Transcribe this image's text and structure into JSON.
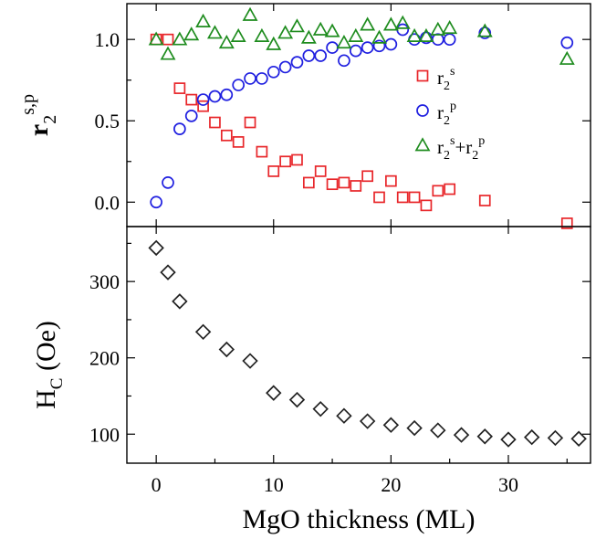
{
  "chart_data": [
    {
      "type": "scatter",
      "panel": "top",
      "ylabel": "r2s,p",
      "ylabel_parts": {
        "base": "r",
        "sub": "2",
        "sup": "s,p"
      },
      "xlim": [
        -2.5,
        37
      ],
      "ylim": [
        -0.15,
        1.22
      ],
      "yticks": [
        0.0,
        0.5,
        1.0
      ],
      "ytick_labels": [
        "0.0",
        "0.5",
        "1.0"
      ],
      "grid": false,
      "legend_position": "right",
      "series": [
        {
          "name": "r2s",
          "legend_parts": [
            {
              "t": "r"
            },
            {
              "t": "2",
              "k": "sub"
            },
            {
              "t": "s",
              "k": "sup"
            }
          ],
          "marker": "square",
          "color": "#e8262a",
          "points": [
            [
              0,
              1.0
            ],
            [
              1,
              1.0
            ],
            [
              2,
              0.7
            ],
            [
              3,
              0.63
            ],
            [
              4,
              0.59
            ],
            [
              5,
              0.49
            ],
            [
              6,
              0.41
            ],
            [
              7,
              0.37
            ],
            [
              8,
              0.49
            ],
            [
              9,
              0.31
            ],
            [
              10,
              0.19
            ],
            [
              11,
              0.25
            ],
            [
              12,
              0.26
            ],
            [
              13,
              0.12
            ],
            [
              14,
              0.19
            ],
            [
              15,
              0.11
            ],
            [
              16,
              0.12
            ],
            [
              17,
              0.1
            ],
            [
              18,
              0.16
            ],
            [
              19,
              0.03
            ],
            [
              20,
              0.13
            ],
            [
              21,
              0.03
            ],
            [
              22,
              0.03
            ],
            [
              23,
              -0.02
            ],
            [
              24,
              0.07
            ],
            [
              25,
              0.08
            ],
            [
              28,
              0.01
            ],
            [
              35,
              -0.13
            ]
          ]
        },
        {
          "name": "r2p",
          "legend_parts": [
            {
              "t": "r"
            },
            {
              "t": "2",
              "k": "sub"
            },
            {
              "t": "p",
              "k": "sup"
            }
          ],
          "marker": "circle",
          "color": "#2020e0",
          "points": [
            [
              0,
              0.0
            ],
            [
              1,
              0.12
            ],
            [
              2,
              0.45
            ],
            [
              3,
              0.53
            ],
            [
              4,
              0.63
            ],
            [
              5,
              0.65
            ],
            [
              6,
              0.66
            ],
            [
              7,
              0.72
            ],
            [
              8,
              0.76
            ],
            [
              9,
              0.76
            ],
            [
              10,
              0.8
            ],
            [
              11,
              0.83
            ],
            [
              12,
              0.86
            ],
            [
              13,
              0.9
            ],
            [
              14,
              0.9
            ],
            [
              15,
              0.95
            ],
            [
              16,
              0.87
            ],
            [
              17,
              0.93
            ],
            [
              18,
              0.95
            ],
            [
              19,
              0.96
            ],
            [
              20,
              0.97
            ],
            [
              21,
              1.06
            ],
            [
              22,
              1.0
            ],
            [
              23,
              1.01
            ],
            [
              24,
              1.0
            ],
            [
              25,
              1.0
            ],
            [
              28,
              1.04
            ],
            [
              35,
              0.98
            ]
          ]
        },
        {
          "name": "r2s+r2p",
          "legend_parts": [
            {
              "t": "r"
            },
            {
              "t": "2",
              "k": "sub"
            },
            {
              "t": "s",
              "k": "sup"
            },
            {
              "t": "+r"
            },
            {
              "t": "2",
              "k": "sub"
            },
            {
              "t": "p",
              "k": "sup"
            }
          ],
          "marker": "triangle",
          "color": "#1e8c1e",
          "points": [
            [
              0,
              1.0
            ],
            [
              1,
              0.91
            ],
            [
              2,
              1.0
            ],
            [
              3,
              1.03
            ],
            [
              4,
              1.11
            ],
            [
              5,
              1.04
            ],
            [
              6,
              0.98
            ],
            [
              7,
              1.02
            ],
            [
              8,
              1.15
            ],
            [
              9,
              1.02
            ],
            [
              10,
              0.97
            ],
            [
              11,
              1.04
            ],
            [
              12,
              1.08
            ],
            [
              13,
              1.01
            ],
            [
              14,
              1.06
            ],
            [
              15,
              1.05
            ],
            [
              16,
              0.98
            ],
            [
              17,
              1.02
            ],
            [
              18,
              1.09
            ],
            [
              19,
              1.01
            ],
            [
              20,
              1.09
            ],
            [
              21,
              1.1
            ],
            [
              22,
              1.02
            ],
            [
              23,
              1.02
            ],
            [
              24,
              1.06
            ],
            [
              25,
              1.07
            ],
            [
              28,
              1.05
            ],
            [
              35,
              0.88
            ]
          ]
        }
      ]
    },
    {
      "type": "scatter",
      "panel": "bottom",
      "ylabel": "HC (Oe)",
      "ylabel_parts": {
        "base": "H",
        "sub": "C",
        "rest": " (Oe)"
      },
      "xlabel": "MgO thickness (ML)",
      "xlim": [
        -2.5,
        37
      ],
      "ylim": [
        62,
        372
      ],
      "xticks": [
        0,
        10,
        20,
        30
      ],
      "xtick_labels": [
        "0",
        "10",
        "20",
        "30"
      ],
      "yticks": [
        100,
        200,
        300
      ],
      "ytick_labels": [
        "100",
        "200",
        "300"
      ],
      "grid": false,
      "series": [
        {
          "name": "HC",
          "marker": "diamond",
          "color": "#222222",
          "points": [
            [
              0,
              344
            ],
            [
              1,
              312
            ],
            [
              2,
              274
            ],
            [
              4,
              234
            ],
            [
              6,
              211
            ],
            [
              8,
              196
            ],
            [
              10,
              154
            ],
            [
              12,
              145
            ],
            [
              14,
              133
            ],
            [
              16,
              124
            ],
            [
              18,
              117
            ],
            [
              20,
              112
            ],
            [
              22,
              108
            ],
            [
              24,
              105
            ],
            [
              26,
              99
            ],
            [
              28,
              97
            ],
            [
              30,
              93
            ],
            [
              32,
              96
            ],
            [
              34,
              95
            ],
            [
              36,
              94
            ]
          ]
        }
      ]
    }
  ]
}
